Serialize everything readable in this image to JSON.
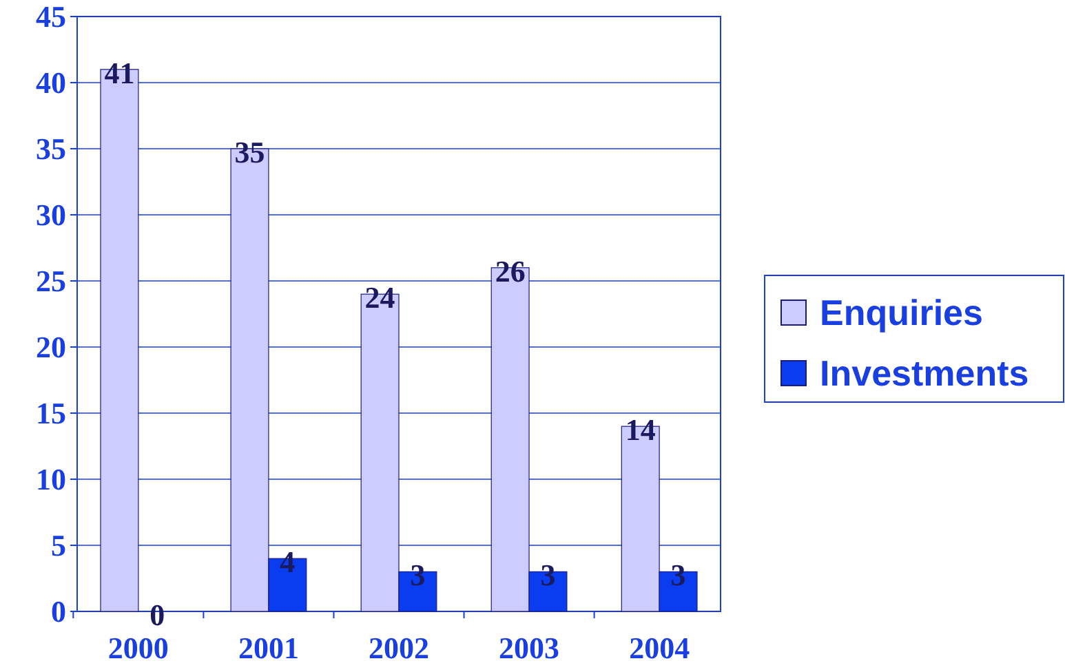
{
  "chart_data": {
    "type": "bar",
    "categories": [
      "2000",
      "2001",
      "2002",
      "2003",
      "2004"
    ],
    "series": [
      {
        "name": "Enquiries",
        "color": "#ccccff",
        "values": [
          41,
          35,
          24,
          26,
          14
        ]
      },
      {
        "name": "Investments",
        "color": "#0a3cf0",
        "values": [
          0,
          4,
          3,
          3,
          3
        ]
      }
    ],
    "ylim": [
      0,
      45
    ],
    "yticks": [
      0,
      5,
      10,
      15,
      20,
      25,
      30,
      35,
      40,
      45
    ],
    "grid": "y",
    "legend": "right",
    "data_labels": true
  }
}
